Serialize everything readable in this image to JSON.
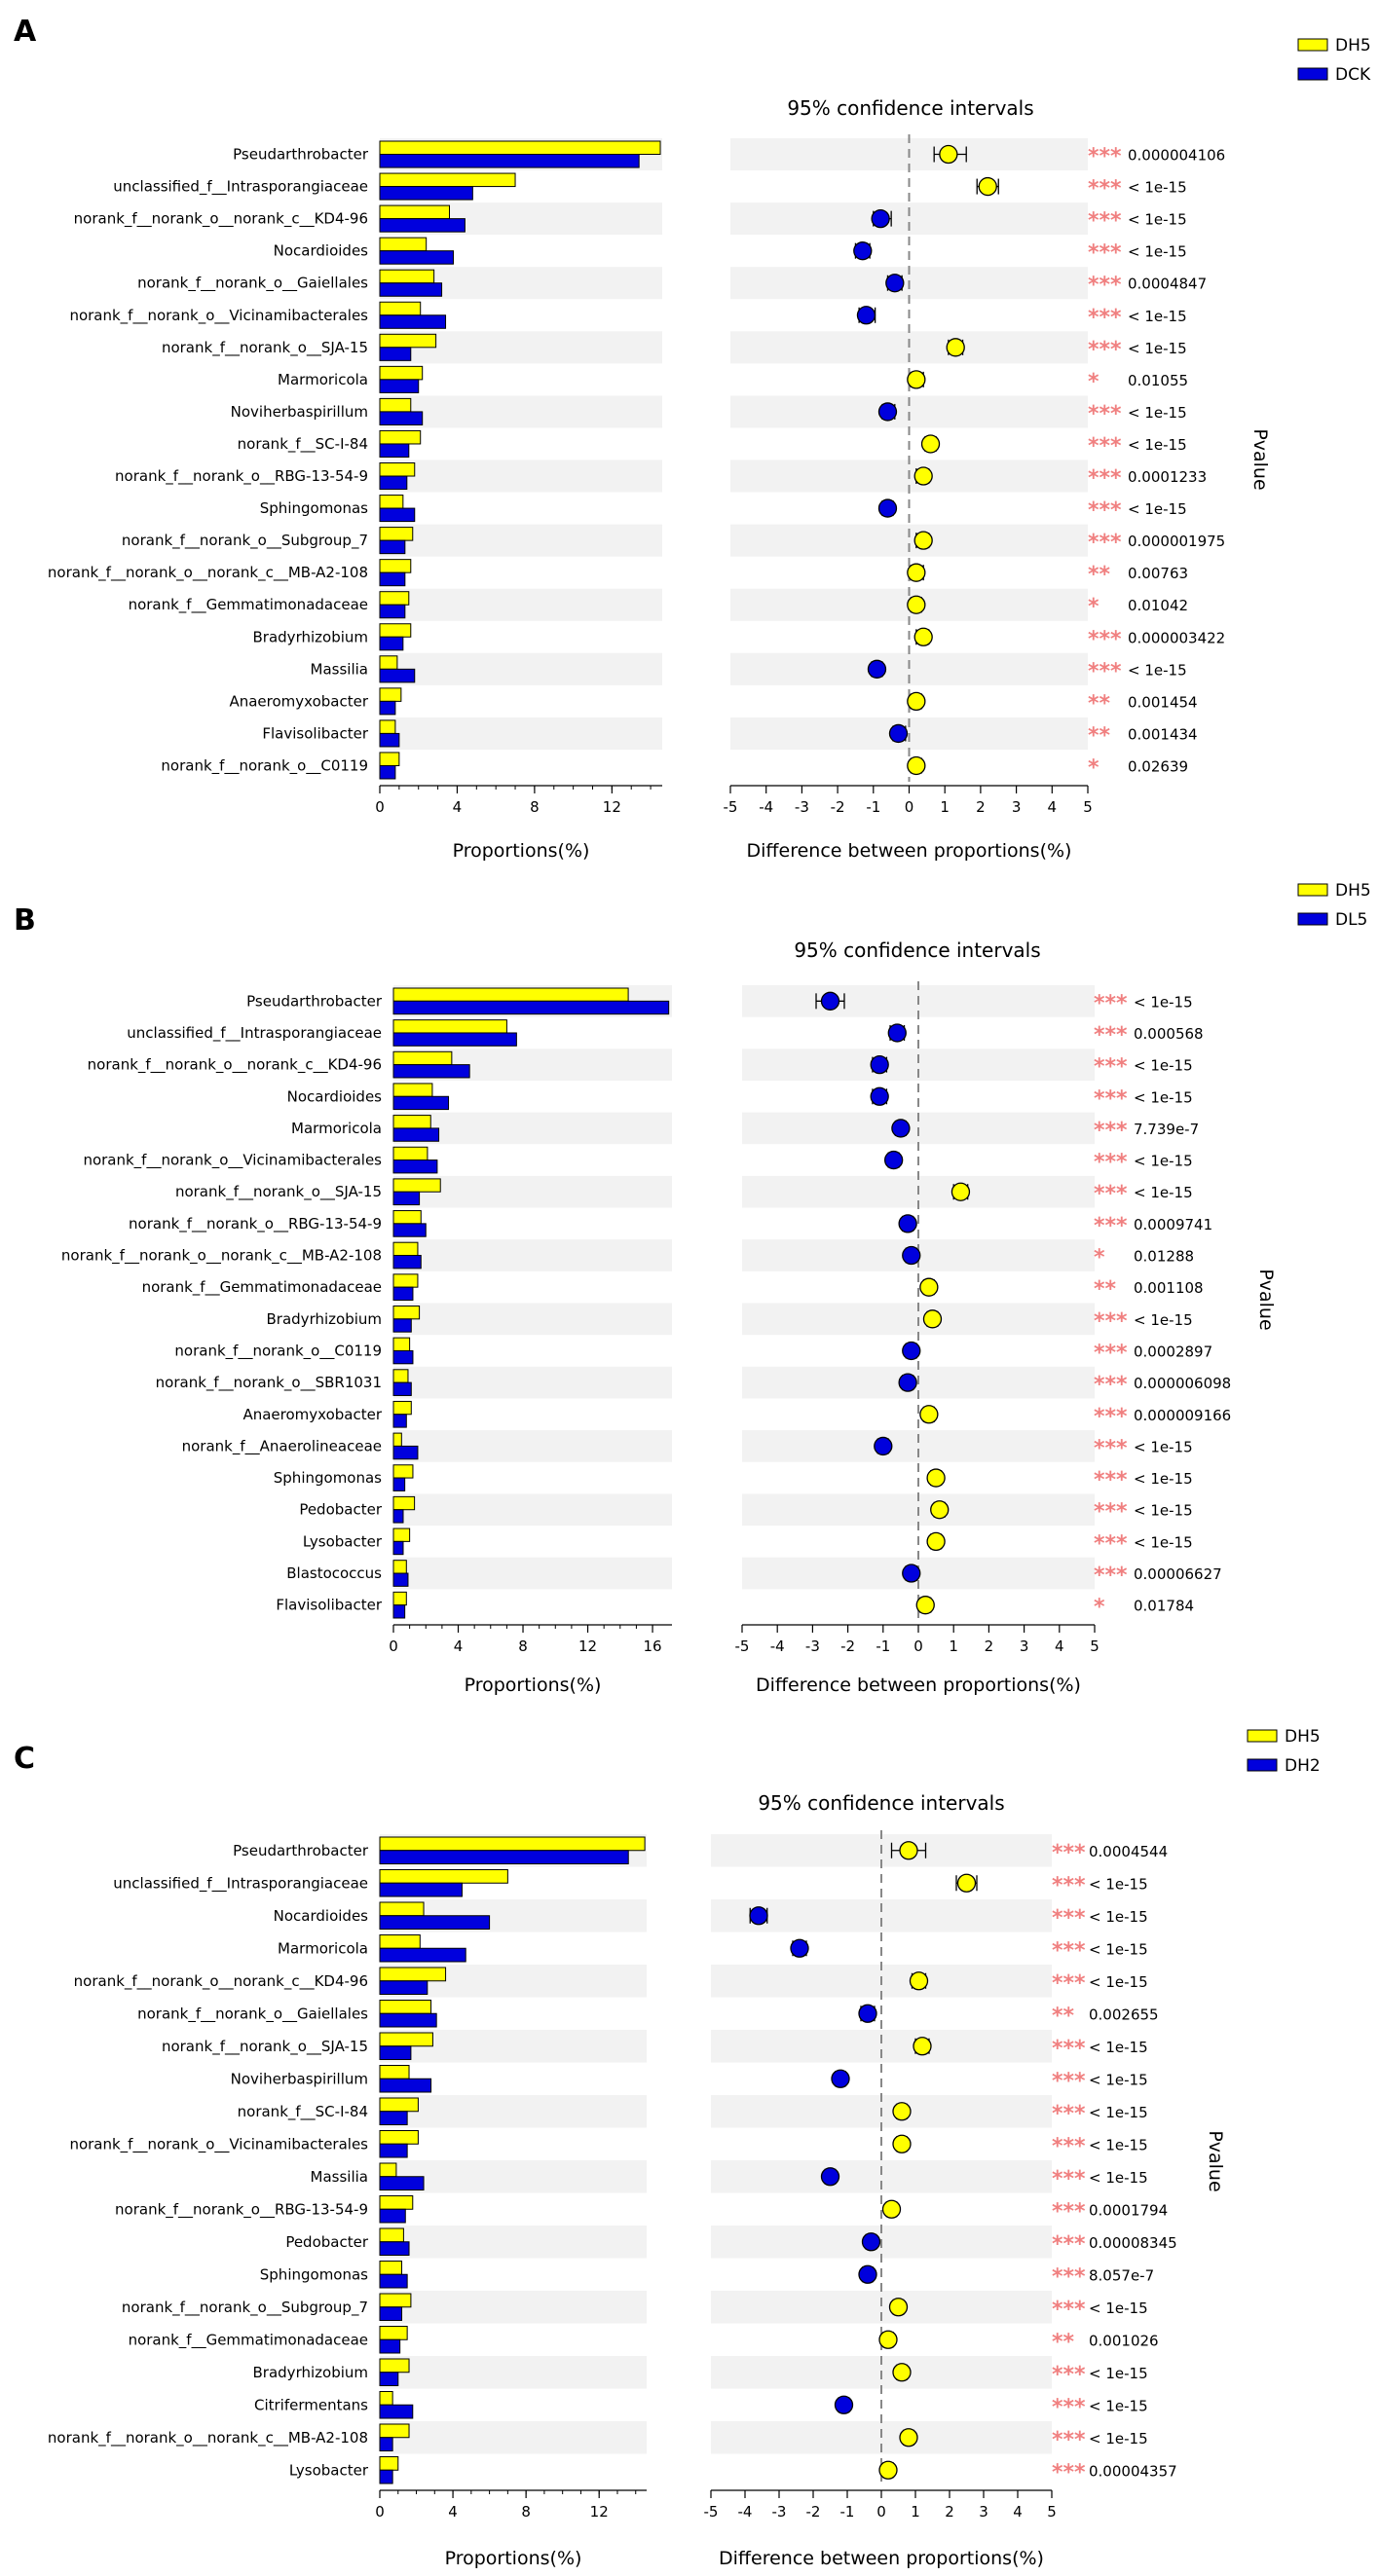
{
  "colors": {
    "group_a": "#ffff00",
    "group_b": "#0000dd",
    "stripe": "#f2f2f2",
    "stars": "#f08080"
  },
  "chart_data": [
    {
      "type": "bar",
      "panel": "A",
      "legend": [
        "DH5",
        "DCK"
      ],
      "title": "95% confidence intervals",
      "xlabel_left": "Proportions(%)",
      "xlabel_right": "Difference between proportions(%)",
      "pvalue_label": "Pvalue",
      "prop_xlim": [
        0,
        14.6
      ],
      "prop_ticks": [
        0,
        4,
        8,
        12
      ],
      "diff_xlim": [
        -5,
        5
      ],
      "diff_ticks": [
        -5,
        -4,
        -3,
        -2,
        -1,
        0,
        1,
        2,
        3,
        4,
        5
      ],
      "categories": [
        "Pseudarthrobacter",
        "unclassified_f__Intrasporangiaceae",
        "norank_f__norank_o__norank_c__KD4-96",
        "Nocardioides",
        "norank_f__norank_o__Gaiellales",
        "norank_f__norank_o__Vicinamibacterales",
        "norank_f__norank_o__SJA-15",
        "Marmoricola",
        "Noviherbaspirillum",
        "norank_f__SC-I-84",
        "norank_f__norank_o__RBG-13-54-9",
        "Sphingomonas",
        "norank_f__norank_o__Subgroup_7",
        "norank_f__norank_o__norank_c__MB-A2-108",
        "norank_f__Gemmatimonadaceae",
        "Bradyrhizobium",
        "Massilia",
        "Anaeromyxobacter",
        "Flavisolibacter",
        "norank_f__norank_o__C0119"
      ],
      "series": [
        {
          "name": "DH5",
          "values": [
            14.5,
            7.0,
            3.6,
            2.4,
            2.8,
            2.1,
            2.9,
            2.2,
            1.6,
            2.1,
            1.8,
            1.2,
            1.7,
            1.6,
            1.5,
            1.6,
            0.9,
            1.1,
            0.8,
            1.0
          ]
        },
        {
          "name": "DCK",
          "values": [
            13.4,
            4.8,
            4.4,
            3.8,
            3.2,
            3.4,
            1.6,
            2.0,
            2.2,
            1.5,
            1.4,
            1.8,
            1.3,
            1.3,
            1.3,
            1.2,
            1.8,
            0.8,
            1.0,
            0.8
          ]
        }
      ],
      "diff": [
        1.1,
        2.2,
        -0.8,
        -1.3,
        -0.4,
        -1.2,
        1.3,
        0.2,
        -0.6,
        0.6,
        0.4,
        -0.6,
        0.4,
        0.2,
        0.2,
        0.4,
        -0.9,
        0.2,
        -0.3,
        0.2
      ],
      "ci_low": [
        0.7,
        1.9,
        -1.0,
        -1.5,
        -0.6,
        -1.4,
        1.1,
        0.05,
        -0.75,
        0.45,
        0.2,
        -0.75,
        0.2,
        0.05,
        0.05,
        0.2,
        -1.05,
        0.05,
        -0.45,
        0.05
      ],
      "ci_high": [
        1.6,
        2.5,
        -0.5,
        -1.1,
        -0.2,
        -0.95,
        1.5,
        0.4,
        -0.4,
        0.75,
        0.55,
        -0.45,
        0.55,
        0.4,
        0.35,
        0.55,
        -0.75,
        0.35,
        -0.1,
        0.35
      ],
      "stars": [
        "***",
        "***",
        "***",
        "***",
        "***",
        "***",
        "***",
        "*",
        "***",
        "***",
        "***",
        "***",
        "***",
        "**",
        "*",
        "***",
        "***",
        "**",
        "**",
        "*"
      ],
      "pvalues": [
        "0.000004106",
        "< 1e-15",
        "< 1e-15",
        "< 1e-15",
        "0.0004847",
        "< 1e-15",
        "< 1e-15",
        "0.01055",
        "< 1e-15",
        "< 1e-15",
        "0.0001233",
        "< 1e-15",
        "0.000001975",
        "0.00763",
        "0.01042",
        "0.000003422",
        "< 1e-15",
        "0.001454",
        "0.001434",
        "0.02639"
      ]
    },
    {
      "type": "bar",
      "panel": "B",
      "legend": [
        "DH5",
        "DL5"
      ],
      "title": "95% confidence intervals",
      "xlabel_left": "Proportions(%)",
      "xlabel_right": "Difference between proportions(%)",
      "pvalue_label": "Pvalue",
      "prop_xlim": [
        0,
        17.2
      ],
      "prop_ticks": [
        0,
        4,
        8,
        12,
        16
      ],
      "diff_xlim": [
        -5,
        5
      ],
      "diff_ticks": [
        -5,
        -4,
        -3,
        -2,
        -1,
        0,
        1,
        2,
        3,
        4,
        5
      ],
      "categories": [
        "Pseudarthrobacter",
        "unclassified_f__Intrasporangiaceae",
        "norank_f__norank_o__norank_c__KD4-96",
        "Nocardioides",
        "Marmoricola",
        "norank_f__norank_o__Vicinamibacterales",
        "norank_f__norank_o__SJA-15",
        "norank_f__norank_o__RBG-13-54-9",
        "norank_f__norank_o__norank_c__MB-A2-108",
        "norank_f__Gemmatimonadaceae",
        "Bradyrhizobium",
        "norank_f__norank_o__C0119",
        "norank_f__norank_o__SBR1031",
        "Anaeromyxobacter",
        "norank_f__Anaerolineaceae",
        "Sphingomonas",
        "Pedobacter",
        "Lysobacter",
        "Blastococcus",
        "Flavisolibacter"
      ],
      "series": [
        {
          "name": "DH5",
          "values": [
            14.5,
            7.0,
            3.6,
            2.4,
            2.3,
            2.1,
            2.9,
            1.7,
            1.5,
            1.5,
            1.6,
            1.0,
            0.9,
            1.1,
            0.5,
            1.2,
            1.3,
            1.0,
            0.8,
            0.8
          ]
        },
        {
          "name": "DL5",
          "values": [
            17.0,
            7.6,
            4.7,
            3.4,
            2.8,
            2.7,
            1.6,
            2.0,
            1.7,
            1.2,
            1.1,
            1.2,
            1.1,
            0.8,
            1.5,
            0.7,
            0.6,
            0.6,
            0.9,
            0.7
          ]
        }
      ],
      "diff": [
        -2.5,
        -0.6,
        -1.1,
        -1.1,
        -0.5,
        -0.7,
        1.2,
        -0.3,
        -0.2,
        0.3,
        0.4,
        -0.2,
        -0.3,
        0.3,
        -1.0,
        0.5,
        0.6,
        0.5,
        -0.2,
        0.2
      ],
      "ci_low": [
        -2.9,
        -0.8,
        -1.3,
        -1.3,
        -0.65,
        -0.85,
        1.0,
        -0.45,
        -0.35,
        0.15,
        0.25,
        -0.35,
        -0.45,
        0.15,
        -1.15,
        0.35,
        0.45,
        0.35,
        -0.35,
        0.05
      ],
      "ci_high": [
        -2.1,
        -0.4,
        -0.9,
        -0.9,
        -0.35,
        -0.55,
        1.4,
        -0.15,
        -0.05,
        0.45,
        0.55,
        -0.05,
        -0.15,
        0.45,
        -0.85,
        0.65,
        0.75,
        0.65,
        -0.05,
        0.35
      ],
      "stars": [
        "***",
        "***",
        "***",
        "***",
        "***",
        "***",
        "***",
        "***",
        "*",
        "**",
        "***",
        "***",
        "***",
        "***",
        "***",
        "***",
        "***",
        "***",
        "***",
        "*"
      ],
      "pvalues": [
        "< 1e-15",
        "0.000568",
        "< 1e-15",
        "< 1e-15",
        "7.739e-7",
        "< 1e-15",
        "< 1e-15",
        "0.0009741",
        "0.01288",
        "0.001108",
        "< 1e-15",
        "0.0002897",
        "0.000006098",
        "0.000009166",
        "< 1e-15",
        "< 1e-15",
        "< 1e-15",
        "< 1e-15",
        "0.00006627",
        "0.01784"
      ]
    },
    {
      "type": "bar",
      "panel": "C",
      "legend": [
        "DH5",
        "DH2"
      ],
      "title": "95% confidence intervals",
      "xlabel_left": "Proportions(%)",
      "xlabel_right": "Difference between proportions(%)",
      "pvalue_label": "Pvalue",
      "prop_xlim": [
        0,
        14.6
      ],
      "prop_ticks": [
        0,
        4,
        8,
        12
      ],
      "diff_xlim": [
        -5,
        5
      ],
      "diff_ticks": [
        -5,
        -4,
        -3,
        -2,
        -1,
        0,
        1,
        2,
        3,
        4,
        5
      ],
      "categories": [
        "Pseudarthrobacter",
        "unclassified_f__Intrasporangiaceae",
        "Nocardioides",
        "Marmoricola",
        "norank_f__norank_o__norank_c__KD4-96",
        "norank_f__norank_o__Gaiellales",
        "norank_f__norank_o__SJA-15",
        "Noviherbaspirillum",
        "norank_f__SC-I-84",
        "norank_f__norank_o__Vicinamibacterales",
        "Massilia",
        "norank_f__norank_o__RBG-13-54-9",
        "Pedobacter",
        "Sphingomonas",
        "norank_f__norank_o__Subgroup_7",
        "norank_f__Gemmatimonadaceae",
        "Bradyrhizobium",
        "Citrifermentans",
        "norank_f__norank_o__norank_c__MB-A2-108",
        "Lysobacter"
      ],
      "series": [
        {
          "name": "DH5",
          "values": [
            14.5,
            7.0,
            2.4,
            2.2,
            3.6,
            2.8,
            2.9,
            1.6,
            2.1,
            2.1,
            0.9,
            1.8,
            1.3,
            1.2,
            1.7,
            1.5,
            1.6,
            0.7,
            1.6,
            1.0
          ]
        },
        {
          "name": "DH2",
          "values": [
            13.6,
            4.5,
            6.0,
            4.7,
            2.6,
            3.1,
            1.7,
            2.8,
            1.5,
            1.5,
            2.4,
            1.4,
            1.6,
            1.5,
            1.2,
            1.1,
            1.0,
            1.8,
            0.7,
            0.7
          ]
        }
      ],
      "diff": [
        0.8,
        2.5,
        -3.6,
        -2.4,
        1.1,
        -0.4,
        1.2,
        -1.2,
        0.6,
        0.6,
        -1.5,
        0.3,
        -0.3,
        -0.4,
        0.5,
        0.2,
        0.6,
        -1.1,
        0.8,
        0.2
      ],
      "ci_low": [
        0.3,
        2.2,
        -3.85,
        -2.6,
        0.9,
        -0.6,
        1.0,
        -1.35,
        0.45,
        0.45,
        -1.65,
        0.15,
        -0.45,
        -0.55,
        0.35,
        0.05,
        0.45,
        -1.25,
        0.65,
        0.05
      ],
      "ci_high": [
        1.3,
        2.8,
        -3.35,
        -2.2,
        1.3,
        -0.2,
        1.4,
        -1.05,
        0.75,
        0.75,
        -1.35,
        0.45,
        -0.15,
        -0.25,
        0.65,
        0.35,
        0.75,
        -0.95,
        0.95,
        0.35
      ],
      "stars": [
        "***",
        "***",
        "***",
        "***",
        "***",
        "**",
        "***",
        "***",
        "***",
        "***",
        "***",
        "***",
        "***",
        "***",
        "***",
        "**",
        "***",
        "***",
        "***",
        "***"
      ],
      "pvalues": [
        "0.0004544",
        "< 1e-15",
        "< 1e-15",
        "< 1e-15",
        "< 1e-15",
        "0.002655",
        "< 1e-15",
        "< 1e-15",
        "< 1e-15",
        "< 1e-15",
        "< 1e-15",
        "0.0001794",
        "0.00008345",
        "8.057e-7",
        "< 1e-15",
        "0.001026",
        "< 1e-15",
        "< 1e-15",
        "< 1e-15",
        "0.00004357"
      ]
    }
  ]
}
